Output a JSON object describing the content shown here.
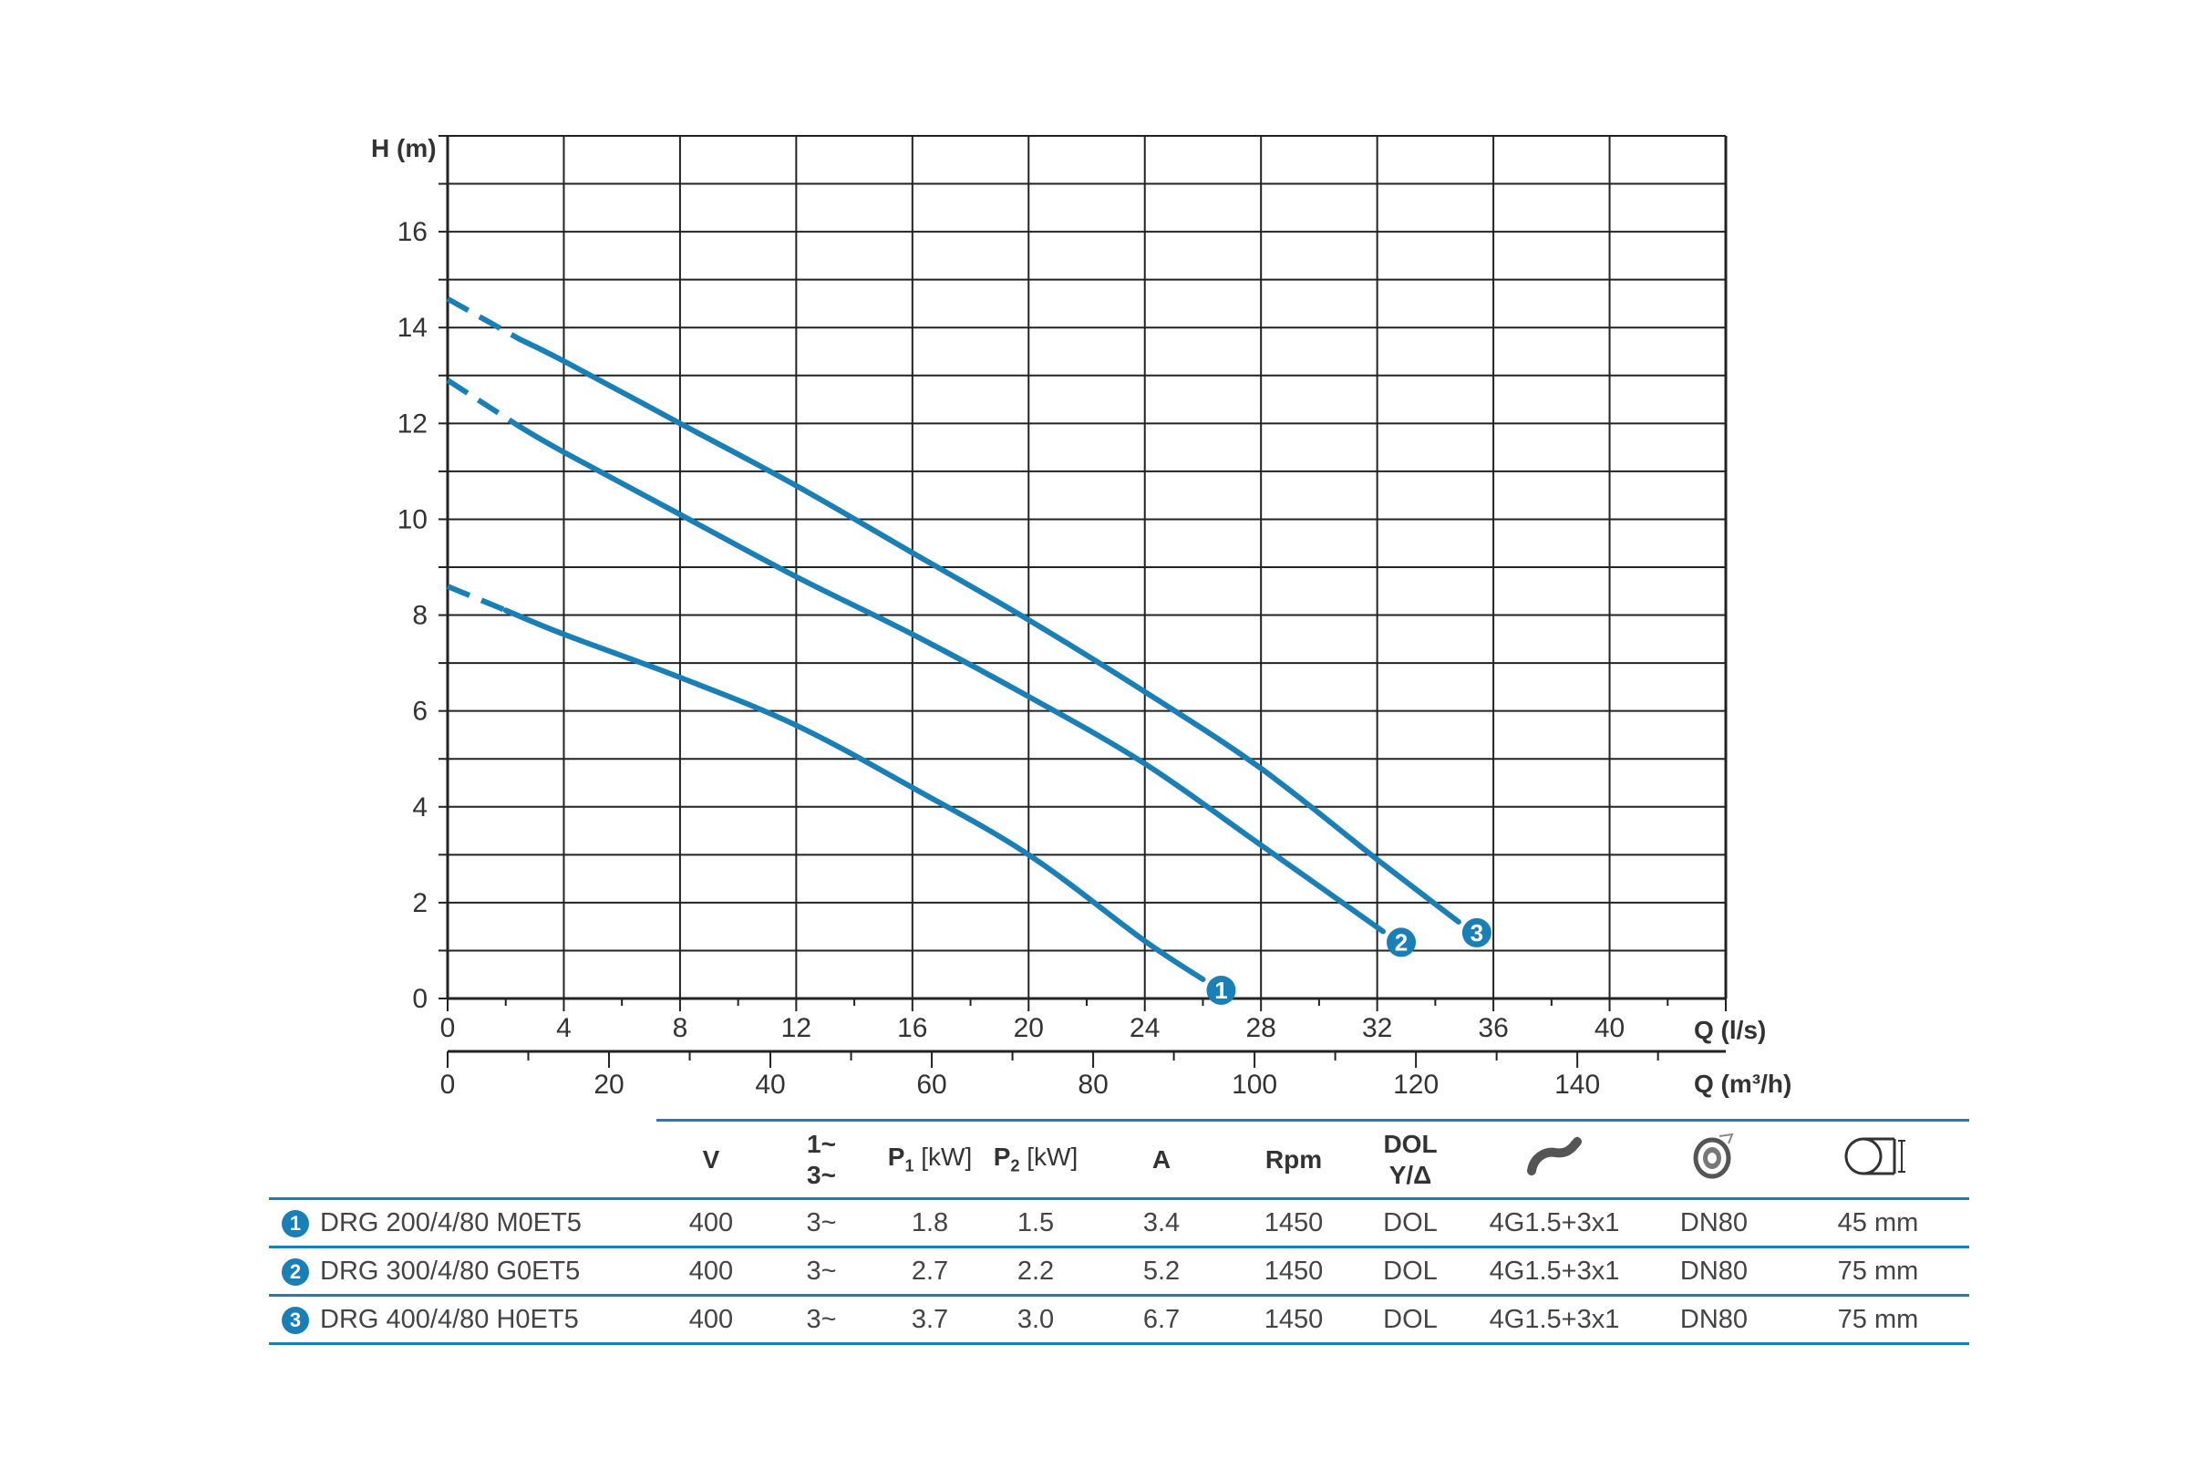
{
  "chart_data": {
    "type": "line",
    "ylabel": "H (m)",
    "xlabel": "Q (l/s)",
    "x2label": "Q (m³/h)",
    "xlim": [
      0,
      44
    ],
    "ylim": [
      0,
      18
    ],
    "x_ticks": [
      0,
      4,
      8,
      12,
      16,
      20,
      24,
      28,
      32,
      36,
      40
    ],
    "x2_ticks": [
      0,
      20,
      40,
      60,
      80,
      100,
      120,
      140
    ],
    "y_ticks": [
      0,
      2,
      4,
      6,
      8,
      10,
      12,
      14,
      16
    ],
    "grid": true,
    "series": [
      {
        "name": "1",
        "x": [
          0,
          2,
          4,
          8,
          12,
          16,
          20,
          24,
          26
        ],
        "y": [
          8.6,
          8.1,
          7.6,
          6.7,
          5.7,
          4.4,
          3.0,
          1.2,
          0.4
        ],
        "dashed_until": 2,
        "color": "#1a7fb5"
      },
      {
        "name": "2",
        "x": [
          0,
          2,
          4,
          8,
          12,
          16,
          20,
          24,
          28,
          32.2
        ],
        "y": [
          12.9,
          12.1,
          11.4,
          10.1,
          8.8,
          7.6,
          6.3,
          4.9,
          3.2,
          1.4
        ],
        "dashed_until": 2.5,
        "color": "#1a7fb5"
      },
      {
        "name": "3",
        "x": [
          0,
          2,
          4,
          8,
          12,
          16,
          20,
          24,
          28,
          32,
          34.8
        ],
        "y": [
          14.6,
          13.9,
          13.3,
          12.0,
          10.7,
          9.3,
          7.9,
          6.4,
          4.8,
          2.9,
          1.6
        ],
        "dashed_until": 2.5,
        "color": "#1a7fb5"
      }
    ]
  },
  "table": {
    "headers": {
      "voltage": "V",
      "phase_top": "1~",
      "phase_bottom": "3~",
      "p1": "P",
      "p1_sub": "1",
      "p1_unit": " [kW]",
      "p2": "P",
      "p2_sub": "2",
      "p2_unit": " [kW]",
      "amps": "A",
      "rpm": "Rpm",
      "start_top": "DOL",
      "start_bottom": "Y/Δ"
    },
    "icons": [
      "cable-icon",
      "outlet-flange-icon",
      "solids-passage-icon"
    ],
    "rows": [
      {
        "num": "1",
        "model": "DRG 200/4/80 M0ET5",
        "v": "400",
        "phase": "3~",
        "p1": "1.8",
        "p2": "1.5",
        "a": "3.4",
        "rpm": "1450",
        "start": "DOL",
        "cable": "4G1.5+3x1",
        "outlet": "DN80",
        "passage": "45 mm"
      },
      {
        "num": "2",
        "model": "DRG 300/4/80 G0ET5",
        "v": "400",
        "phase": "3~",
        "p1": "2.7",
        "p2": "2.2",
        "a": "5.2",
        "rpm": "1450",
        "start": "DOL",
        "cable": "4G1.5+3x1",
        "outlet": "DN80",
        "passage": "75 mm"
      },
      {
        "num": "3",
        "model": "DRG 400/4/80 H0ET5",
        "v": "400",
        "phase": "3~",
        "p1": "3.7",
        "p2": "3.0",
        "a": "6.7",
        "rpm": "1450",
        "start": "DOL",
        "cable": "4G1.5+3x1",
        "outlet": "DN80",
        "passage": "75 mm"
      }
    ]
  }
}
